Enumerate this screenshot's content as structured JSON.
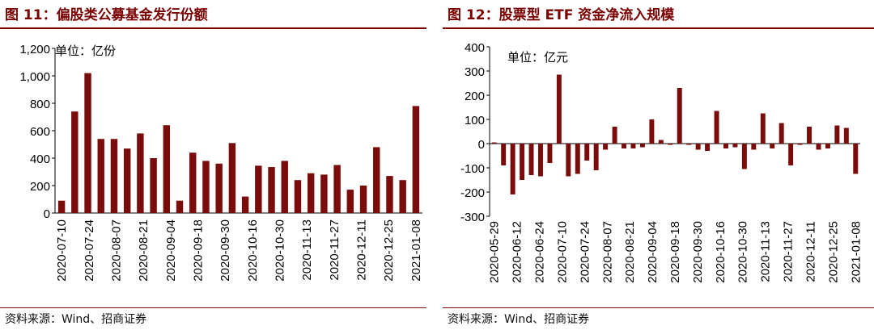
{
  "left": {
    "title": "图 11：偏股类公募基金发行份额",
    "source": "资料来源：Wind、招商证券",
    "unit": "单位：亿份"
  },
  "right": {
    "title": "图 12：股票型 ETF 资金净流入规模",
    "source": "资料来源：Wind、招商证券",
    "unit": "单位：亿元"
  },
  "colors": {
    "bar": "#7b0c0c",
    "title": "#7a0000"
  },
  "chart_data": [
    {
      "type": "bar",
      "title": "",
      "unit": "单位：亿份",
      "ylim": [
        0,
        1200
      ],
      "yticks": [
        0,
        200,
        400,
        600,
        800,
        1000,
        1200
      ],
      "ytick_labels": [
        "0",
        "200",
        "400",
        "600",
        "800",
        "1,000",
        "1,200"
      ],
      "xtick_labels": [
        "2020-07-10",
        "2020-07-24",
        "2020-08-07",
        "2020-08-21",
        "2020-09-04",
        "2020-09-18",
        "2020-09-30",
        "2020-10-16",
        "2020-10-30",
        "2020-11-13",
        "2020-11-27",
        "2020-12-11",
        "2020-12-25",
        "2021-01-08"
      ],
      "values": [
        90,
        740,
        1020,
        540,
        540,
        470,
        580,
        400,
        640,
        90,
        440,
        380,
        360,
        510,
        120,
        345,
        335,
        380,
        240,
        290,
        280,
        350,
        170,
        200,
        480,
        270,
        240,
        780
      ],
      "grid": false,
      "legend": "none"
    },
    {
      "type": "bar",
      "title": "",
      "unit": "单位：亿元",
      "ylim": [
        -300,
        400
      ],
      "yticks": [
        -300,
        -200,
        -100,
        0,
        100,
        200,
        300,
        400
      ],
      "ytick_labels": [
        "-300",
        "-200",
        "-100",
        "0",
        "100",
        "200",
        "300",
        "400"
      ],
      "xtick_labels": [
        "2020-05-29",
        "2020-06-12",
        "2020-06-24",
        "2020-07-10",
        "2020-07-24",
        "2020-08-07",
        "2020-08-21",
        "2020-09-04",
        "2020-09-18",
        "2020-09-30",
        "2020-10-16",
        "2020-10-30",
        "2020-11-13",
        "2020-11-27",
        "2020-12-11",
        "2020-12-25",
        "2021-01-08"
      ],
      "values": [
        5,
        -90,
        -210,
        -150,
        -130,
        -135,
        -80,
        285,
        -135,
        -125,
        -70,
        -110,
        -25,
        70,
        -20,
        -20,
        -15,
        100,
        15,
        -5,
        230,
        -5,
        -25,
        -30,
        135,
        -20,
        -15,
        -105,
        -25,
        125,
        -20,
        85,
        -90,
        -5,
        70,
        -25,
        -20,
        75,
        65,
        -125
      ],
      "grid": false,
      "legend": "none"
    }
  ]
}
